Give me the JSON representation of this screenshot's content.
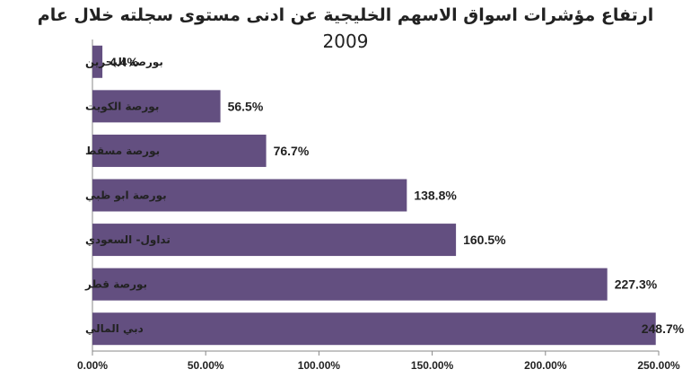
{
  "chart_data": {
    "type": "bar",
    "orientation": "horizontal",
    "title": "ارتفاع مؤشرات اسواق الاسهم الخليجية عن ادنى مستوى سجلته خلال عام",
    "subtitle": "2009",
    "categories": [
      "بورصة البحرين",
      "بورصة الكويت",
      "بورصة مسقط",
      "بورصة ابو ظبي",
      "تداول- السعودي",
      "بورصة قطر",
      "دبي المالي"
    ],
    "values": [
      4.4,
      56.5,
      76.7,
      138.8,
      160.5,
      227.3,
      248.7
    ],
    "data_labels": [
      "4.4%",
      "56.5%",
      "76.7%",
      "138.8%",
      "160.5%",
      "227.3%",
      "248.7%"
    ],
    "xlim": [
      0,
      250
    ],
    "xticks": [
      0,
      50,
      100,
      150,
      200,
      250
    ],
    "xtick_labels": [
      "0.00%",
      "50.00%",
      "100.00%",
      "150.00%",
      "200.00%",
      "250.00%"
    ],
    "bar_color": "#634f80",
    "grid": false,
    "legend": "none"
  }
}
